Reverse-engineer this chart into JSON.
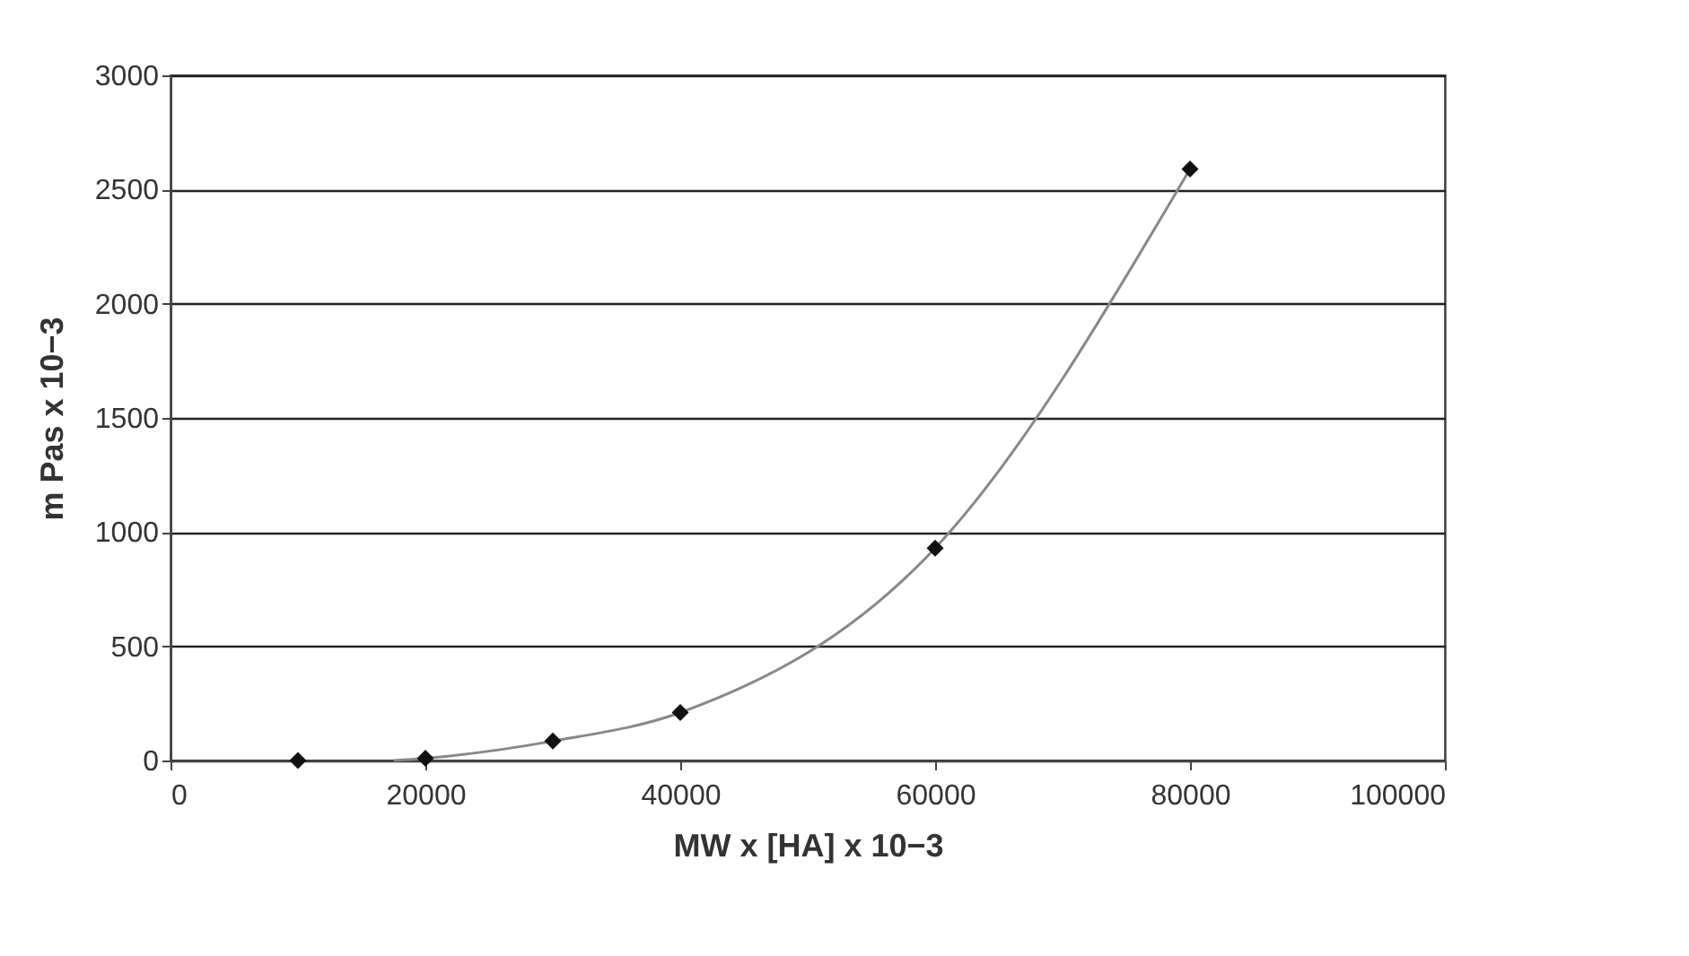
{
  "chart_data": {
    "type": "scatter",
    "xlabel": "MW x [HA] x 10−3",
    "ylabel": "m Pas x 10−3",
    "x": [
      10000,
      20000,
      30000,
      40000,
      60000,
      80000
    ],
    "series": [
      {
        "type": "scatter",
        "color": "#111111",
        "marker": "diamond",
        "values": [
          0,
          10,
          85,
          210,
          930,
          2590
        ]
      },
      {
        "type": "line",
        "color": "#888888",
        "marker": "none",
        "x": [
          17500,
          20000,
          30000,
          40000,
          60000,
          80000
        ],
        "values": [
          0,
          10,
          85,
          210,
          930,
          2590
        ]
      }
    ],
    "xlim": [
      0,
      100000
    ],
    "xticks": [
      0,
      20000,
      40000,
      60000,
      80000,
      100000
    ],
    "ylim": [
      0,
      3000
    ],
    "yticks": [
      0,
      500,
      1000,
      1500,
      2000,
      2500,
      3000
    ],
    "grid": "y"
  }
}
